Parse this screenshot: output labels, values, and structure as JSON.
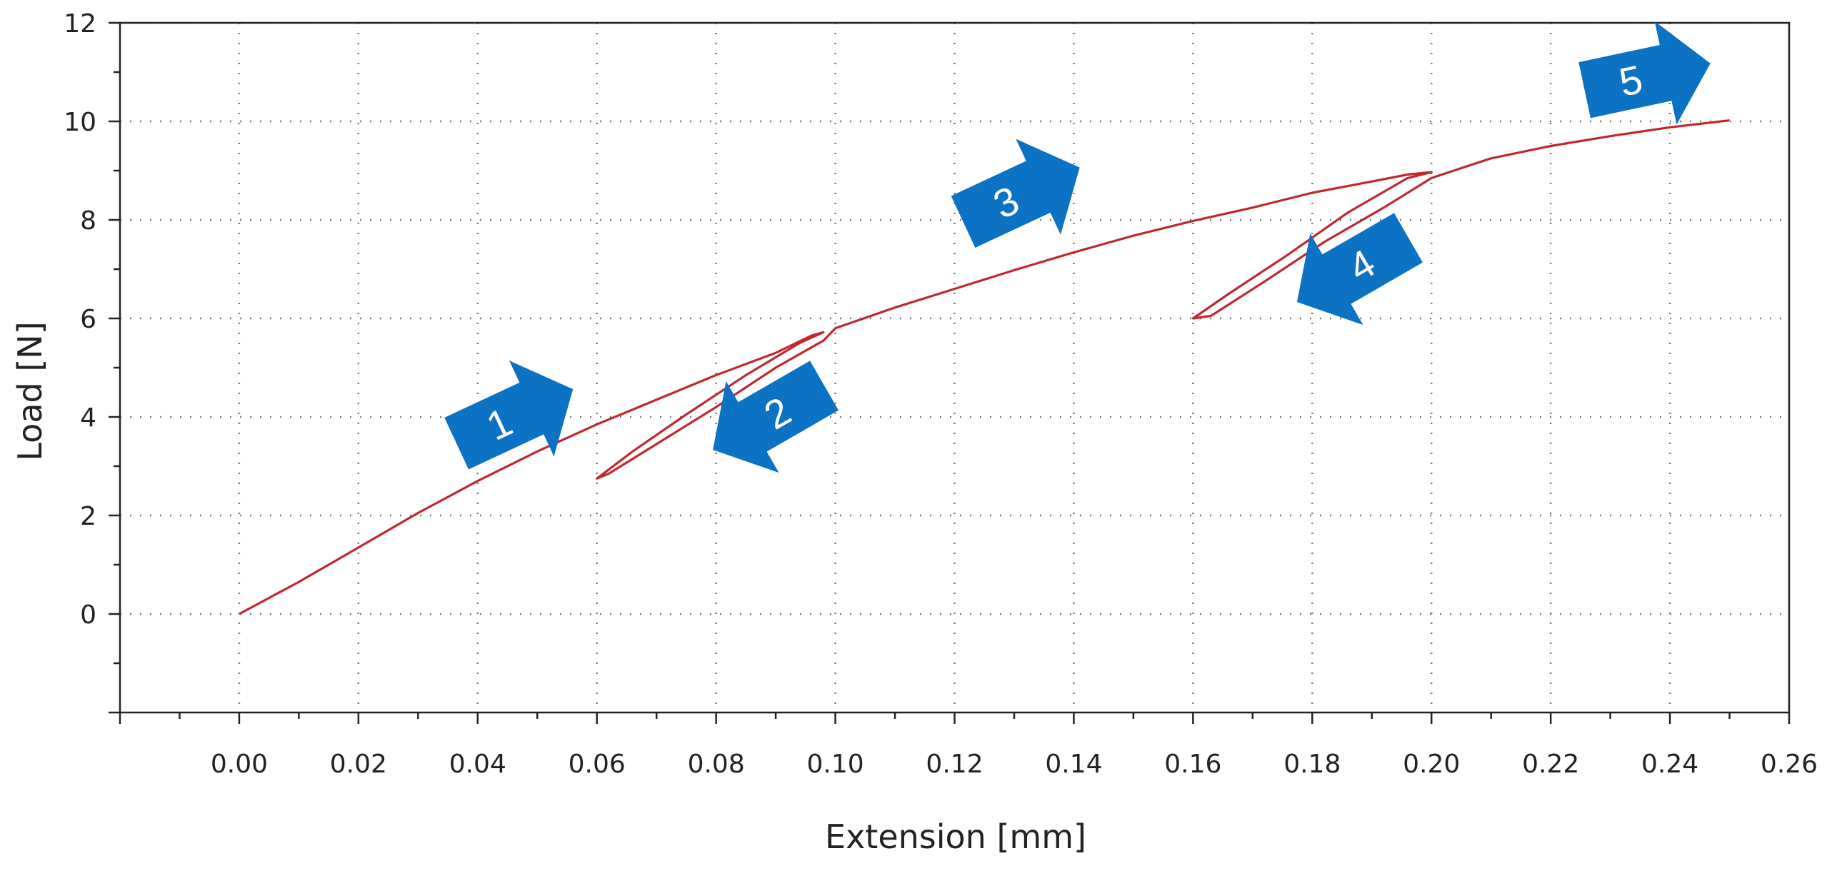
{
  "chart_data": {
    "type": "line",
    "title": "",
    "xlabel": "Extension [mm]",
    "ylabel": "Load [N]",
    "xlim": [
      -0.02,
      0.26
    ],
    "ylim": [
      -2,
      12
    ],
    "x_ticks": [
      "0.00",
      "0.02",
      "0.04",
      "0.06",
      "0.08",
      "0.10",
      "0.12",
      "0.14",
      "0.16",
      "0.18",
      "0.20",
      "0.22",
      "0.24",
      "0.26"
    ],
    "y_ticks": [
      "0",
      "2",
      "4",
      "6",
      "8",
      "10",
      "12"
    ],
    "grid": true,
    "colors": {
      "series": "#c0282e",
      "arrows": "#0b72c4",
      "grid": "#777777"
    },
    "series": [
      {
        "points": [
          [
            0.0,
            0.0
          ],
          [
            0.01,
            0.65
          ],
          [
            0.02,
            1.35
          ],
          [
            0.03,
            2.05
          ],
          [
            0.04,
            2.7
          ],
          [
            0.05,
            3.3
          ],
          [
            0.06,
            3.85
          ],
          [
            0.07,
            4.35
          ],
          [
            0.08,
            4.85
          ],
          [
            0.09,
            5.3
          ],
          [
            0.096,
            5.65
          ],
          [
            0.098,
            5.72
          ],
          [
            0.094,
            5.5
          ],
          [
            0.085,
            4.85
          ],
          [
            0.075,
            4.05
          ],
          [
            0.066,
            3.3
          ],
          [
            0.06,
            2.75
          ],
          [
            0.062,
            2.85
          ],
          [
            0.07,
            3.45
          ],
          [
            0.08,
            4.2
          ],
          [
            0.09,
            5.0
          ],
          [
            0.098,
            5.55
          ],
          [
            0.1,
            5.8
          ],
          [
            0.11,
            6.22
          ],
          [
            0.12,
            6.6
          ],
          [
            0.13,
            6.98
          ],
          [
            0.14,
            7.34
          ],
          [
            0.15,
            7.68
          ],
          [
            0.16,
            7.98
          ],
          [
            0.17,
            8.25
          ],
          [
            0.18,
            8.55
          ],
          [
            0.19,
            8.78
          ],
          [
            0.196,
            8.92
          ],
          [
            0.2,
            8.97
          ],
          [
            0.196,
            8.85
          ],
          [
            0.186,
            8.15
          ],
          [
            0.176,
            7.3
          ],
          [
            0.166,
            6.5
          ],
          [
            0.16,
            6.0
          ],
          [
            0.163,
            6.05
          ],
          [
            0.172,
            6.75
          ],
          [
            0.182,
            7.55
          ],
          [
            0.192,
            8.25
          ],
          [
            0.2,
            8.85
          ],
          [
            0.205,
            9.05
          ],
          [
            0.21,
            9.25
          ],
          [
            0.22,
            9.5
          ],
          [
            0.23,
            9.7
          ],
          [
            0.24,
            9.88
          ],
          [
            0.25,
            10.02
          ]
        ]
      }
    ],
    "annotations": [
      {
        "label": "1",
        "x": 0.046,
        "y": 4.0,
        "angle": -25,
        "direction": "forward"
      },
      {
        "label": "2",
        "x": 0.089,
        "y": 4.0,
        "angle": -30,
        "direction": "reverse"
      },
      {
        "label": "3",
        "x": 0.131,
        "y": 8.5,
        "angle": -25,
        "direction": "forward"
      },
      {
        "label": "4",
        "x": 0.187,
        "y": 7.0,
        "angle": -30,
        "direction": "reverse"
      },
      {
        "label": "5",
        "x": 0.236,
        "y": 10.9,
        "angle": -12,
        "direction": "forward"
      }
    ]
  }
}
